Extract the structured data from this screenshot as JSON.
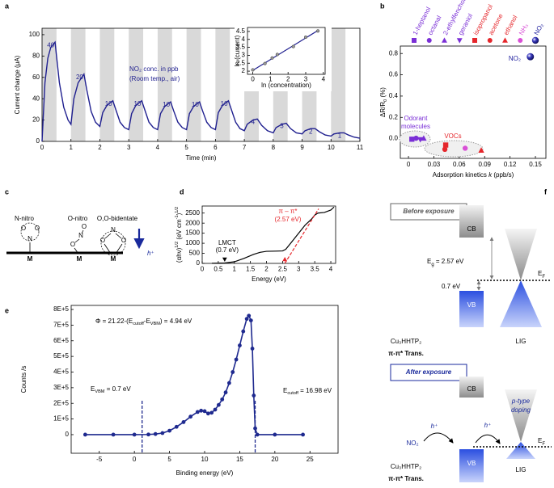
{
  "panel_labels": [
    "a",
    "b",
    "c",
    "d",
    "e",
    "f"
  ],
  "chart_data": [
    {
      "type": "line",
      "xlabel": "Time (min)",
      "ylabel": "Current change (μA)",
      "xlim": [
        0,
        11
      ],
      "ylim": [
        0,
        106
      ],
      "xticks": [
        0,
        1,
        2,
        3,
        4,
        5,
        6,
        7,
        8,
        9,
        10,
        11
      ],
      "yticks": [
        0,
        20,
        40,
        60,
        80,
        100
      ],
      "x": [
        0,
        0.1,
        0.2,
        0.3,
        0.45,
        0.5,
        0.6,
        0.75,
        0.9,
        1.0,
        1.1,
        1.25,
        1.45,
        1.55,
        1.7,
        1.85,
        2.0,
        2.1,
        2.25,
        2.45,
        2.55,
        2.7,
        2.85,
        3.0,
        3.1,
        3.25,
        3.45,
        3.55,
        3.7,
        3.85,
        4.0,
        4.1,
        4.25,
        4.45,
        4.55,
        4.7,
        4.85,
        5.0,
        5.1,
        5.25,
        5.45,
        5.55,
        5.7,
        5.85,
        6.0,
        6.1,
        6.25,
        6.45,
        6.55,
        6.7,
        6.85,
        7.0,
        7.1,
        7.3,
        7.45,
        7.6,
        7.8,
        8.0,
        8.1,
        8.3,
        8.45,
        8.6,
        8.8,
        9.0,
        9.1,
        9.3,
        9.45,
        9.6,
        9.8,
        10.0,
        10.1,
        10.3,
        10.45,
        10.6,
        10.8,
        11.0
      ],
      "values": [
        0,
        55,
        78,
        88,
        93,
        80,
        55,
        32,
        20,
        16,
        40,
        55,
        63,
        48,
        28,
        18,
        14,
        27,
        34,
        38,
        30,
        18,
        13,
        11,
        26,
        34,
        38,
        30,
        18,
        13,
        11,
        26,
        33,
        37,
        29,
        18,
        13,
        11,
        26,
        33,
        37,
        29,
        18,
        13,
        11,
        27,
        34,
        38,
        30,
        18,
        12,
        10,
        16,
        20,
        21,
        15,
        10,
        8,
        13,
        16,
        17,
        12,
        8,
        7,
        10,
        12,
        12,
        9,
        6,
        5,
        7,
        8,
        8,
        6,
        4,
        3
      ],
      "color": "#1f1f8f",
      "exposure_intervals": [
        [
          0,
          0.5
        ],
        [
          1,
          1.5
        ],
        [
          2,
          2.5
        ],
        [
          3,
          3.5
        ],
        [
          4,
          4.5
        ],
        [
          5,
          5.5
        ],
        [
          6,
          6.5
        ],
        [
          7,
          7.5
        ],
        [
          8,
          8.5
        ],
        [
          9,
          9.5
        ],
        [
          10,
          10.5
        ]
      ],
      "band_color": "#d9d9d9",
      "concentration_labels": [
        40,
        20,
        10,
        10,
        10,
        10,
        10,
        4,
        3,
        2,
        1
      ],
      "annotation": [
        "NO₂ conc. in ppb",
        "(Room temp., air)"
      ]
    },
    {
      "type": "scatter",
      "xlabel": "ln (concentration)",
      "ylabel": "ln (current)",
      "xlim": [
        -0.3,
        4.1
      ],
      "ylim": [
        1.8,
        4.75
      ],
      "xticks": [
        0,
        1,
        2,
        3,
        4
      ],
      "yticks": [
        2,
        2.5,
        3,
        3.5,
        4,
        4.5
      ],
      "x": [
        0,
        0.69,
        1.1,
        1.39,
        2.3,
        3,
        3.69
      ],
      "values": [
        2.08,
        2.48,
        2.83,
        3.05,
        3.55,
        4.14,
        4.53
      ],
      "fit": {
        "x": [
          0,
          3.75
        ],
        "values": [
          2.05,
          4.6
        ]
      },
      "color": "#1f1f8f"
    },
    {
      "type": "scatter",
      "xlabel": [
        "Adsorption kinetics ",
        "k",
        " (ppb/s)"
      ],
      "ylabel": [
        "ΔR/R",
        "0",
        " (%)"
      ],
      "xlim": [
        -0.0096,
        0.1624
      ],
      "ylim": [
        -0.185,
        0.87
      ],
      "xticks": [
        0,
        0.03,
        0.06,
        0.09,
        0.12,
        0.15
      ],
      "yticks": [
        {
          "value": 0,
          "label": "0.0"
        },
        0.2,
        0.4,
        0.6,
        0.8
      ],
      "series": [
        {
          "name": "1-heptanol",
          "color": "#7a2fd6",
          "marker": "square",
          "x": [
            0.004
          ],
          "values": [
            -0.005
          ]
        },
        {
          "name": "octanal",
          "color": "#7a2fd6",
          "marker": "circle",
          "x": [
            0.009
          ],
          "values": [
            0.004
          ]
        },
        {
          "name": "2-ethylfenchol",
          "color": "#7a2fd6",
          "marker": "triangle-up",
          "x": [
            0.018
          ],
          "values": [
            0.003
          ]
        },
        {
          "name": "geraniol",
          "color": "#7a2fd6",
          "marker": "triangle-down",
          "x": [
            0.014
          ],
          "values": [
            -0.008
          ]
        },
        {
          "name": "isopropanol",
          "color": "#e5262b",
          "marker": "square",
          "x": [
            0.044
          ],
          "values": [
            -0.06
          ]
        },
        {
          "name": "acetone",
          "color": "#e5262b",
          "marker": "circle",
          "x": [
            0.043
          ],
          "values": [
            -0.1
          ]
        },
        {
          "name": "ethanol",
          "color": "#e5262b",
          "marker": "triangle-up",
          "x": [
            0.086
          ],
          "values": [
            -0.11
          ]
        },
        {
          "name": "NH₃",
          "color": "#d94fd6",
          "marker": "circle",
          "x": [
            0.067
          ],
          "values": [
            -0.09
          ]
        },
        {
          "name": "NO₂",
          "color": "#1a1a9c",
          "marker": "sphere",
          "x": [
            0.144
          ],
          "values": [
            0.77
          ]
        }
      ],
      "annotations": [
        "Odorant",
        "molecules",
        "VOCs",
        "NO₂"
      ]
    },
    {
      "type": "line",
      "xlabel": "Energy (eV)",
      "ylabel": [
        "(αhν)",
        "1/2",
        " (eV cm",
        "-1",
        ")",
        "1/2"
      ],
      "xlim": [
        0,
        4.15
      ],
      "ylim": [
        0,
        2850
      ],
      "xticks": [
        0,
        0.5,
        1,
        1.5,
        2,
        2.5,
        3,
        3.5,
        4
      ],
      "yticks": [
        0,
        500,
        1000,
        1500,
        2000,
        2500
      ],
      "x": [
        0.3,
        0.7,
        1.0,
        1.3,
        1.6,
        1.8,
        2.0,
        2.3,
        2.5,
        2.6,
        2.8,
        3.0,
        3.2,
        3.4,
        3.5,
        3.6,
        3.8,
        4.0,
        4.1
      ],
      "values": [
        5,
        20,
        80,
        250,
        450,
        550,
        600,
        610,
        620,
        700,
        1100,
        1500,
        1900,
        2200,
        2400,
        2500,
        2530,
        2650,
        2800
      ],
      "color": "#000000",
      "fit": {
        "x": [
          2.57,
          3.62
        ],
        "values": [
          0,
          2710
        ],
        "color": "#e5262b"
      },
      "edge_markers": [
        0.7,
        2.57
      ],
      "annotations": [
        "LMCT",
        "(0.7 eV)",
        "π – π*",
        "(2.57 eV)"
      ]
    },
    {
      "type": "line",
      "xlabel": "Binding energy (eV)",
      "ylabel": "Counts /s",
      "xlim": [
        -9,
        29
      ],
      "ylim": [
        -119000,
        826000
      ],
      "xticks": [
        -5,
        0,
        5,
        10,
        15,
        20,
        25
      ],
      "yticks": [
        0,
        {
          "value": 100000,
          "label": "1E+5"
        },
        {
          "value": 200000,
          "label": "2E+5"
        },
        {
          "value": 300000,
          "label": "3E+5"
        },
        {
          "value": 400000,
          "label": "4E+5"
        },
        {
          "value": 500000,
          "label": "5E+5"
        },
        {
          "value": 600000,
          "label": "6E+5"
        },
        {
          "value": 700000,
          "label": "7E+5"
        },
        {
          "value": 800000,
          "label": "8E+5"
        }
      ],
      "x": [
        -7,
        -3,
        0,
        2,
        3,
        4,
        5,
        6,
        7,
        8,
        9,
        9.5,
        10,
        10.5,
        11,
        11.5,
        12,
        12.5,
        13,
        13.5,
        14,
        14.5,
        15,
        15.5,
        16,
        16.3,
        16.6,
        16.8,
        17,
        17.2,
        17.5,
        20,
        24
      ],
      "values": [
        0,
        0,
        0,
        1000,
        4000,
        10000,
        25000,
        50000,
        80000,
        115000,
        145000,
        153000,
        150000,
        135000,
        140000,
        160000,
        190000,
        225000,
        270000,
        330000,
        400000,
        480000,
        570000,
        660000,
        740000,
        760000,
        730000,
        550000,
        250000,
        40000,
        0,
        0,
        0
      ],
      "color": "#1f2a8f",
      "vlines": [
        1.1,
        17.2
      ],
      "formula": [
        "Φ = 21.22-(E",
        "cutoff",
        "-E",
        "VBM",
        ") = 4.94 eV"
      ],
      "vbm_label": [
        "E",
        "VBM",
        " = 0.7 eV"
      ],
      "cutoff_label": [
        "E",
        "cutoff",
        " = 16.98 eV"
      ]
    }
  ],
  "diagram_c": {
    "titles": [
      "N-nitro",
      "O-nitro",
      "O,O-bidentate"
    ],
    "atoms": [
      "O",
      "O",
      "N",
      "M",
      "O",
      "N",
      "O",
      "M",
      "N",
      "O",
      "O",
      "M"
    ],
    "hplus": "h⁺"
  },
  "diagram_f": {
    "before": "Before exposure",
    "after": "After exposure",
    "cb": "CB",
    "vb": "VB",
    "eg": [
      "E",
      "g",
      " = 2.57 eV"
    ],
    "offset": "0.7 eV",
    "ef": [
      "E",
      "F"
    ],
    "material": "Cu₃HHTP₂",
    "transition": "π-π* Trans.",
    "lig": "LIG",
    "doping": [
      "p-type",
      "doping"
    ],
    "hplus": "h⁺",
    "no2": "NO₂"
  }
}
